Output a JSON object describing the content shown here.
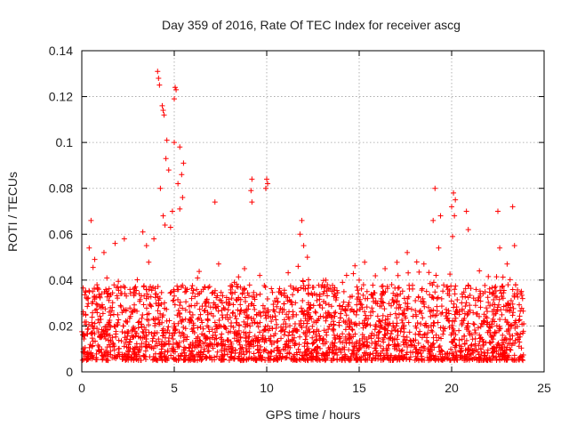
{
  "chart_data": {
    "type": "scatter",
    "title": "Day 359 of 2016, Rate Of TEC Index for receiver ascg",
    "xlabel": "GPS time / hours",
    "ylabel": "ROTI / TECUs",
    "xlim": [
      0,
      25
    ],
    "ylim": [
      0,
      0.14
    ],
    "xticks": [
      0,
      5,
      10,
      15,
      20,
      25
    ],
    "xtick_labels": [
      "0",
      "5",
      "10",
      "15",
      "20",
      "25"
    ],
    "yticks": [
      0,
      0.02,
      0.04,
      0.06,
      0.08,
      0.1,
      0.12,
      0.14
    ],
    "ytick_labels": [
      "0",
      "0.02",
      "0.04",
      "0.06",
      "0.08",
      "0.1",
      "0.12",
      "0.14"
    ],
    "grid": true,
    "marker": "+",
    "color": "#ff0000",
    "series": [
      {
        "name": "ROTI",
        "x_range_hours": [
          0,
          23.9
        ],
        "bulk_range_tecu": [
          0.005,
          0.035
        ],
        "outliers": [
          {
            "x": 4.1,
            "y": 0.131
          },
          {
            "x": 4.15,
            "y": 0.128
          },
          {
            "x": 4.2,
            "y": 0.125
          },
          {
            "x": 4.35,
            "y": 0.116
          },
          {
            "x": 4.45,
            "y": 0.112
          },
          {
            "x": 4.4,
            "y": 0.114
          },
          {
            "x": 5.05,
            "y": 0.124
          },
          {
            "x": 5.1,
            "y": 0.123
          },
          {
            "x": 5.0,
            "y": 0.119
          },
          {
            "x": 4.6,
            "y": 0.101
          },
          {
            "x": 4.55,
            "y": 0.093
          },
          {
            "x": 5.0,
            "y": 0.1
          },
          {
            "x": 5.3,
            "y": 0.098
          },
          {
            "x": 5.5,
            "y": 0.091
          },
          {
            "x": 5.4,
            "y": 0.086
          },
          {
            "x": 4.7,
            "y": 0.088
          },
          {
            "x": 4.25,
            "y": 0.08
          },
          {
            "x": 5.2,
            "y": 0.082
          },
          {
            "x": 5.45,
            "y": 0.076
          },
          {
            "x": 5.3,
            "y": 0.071
          },
          {
            "x": 4.9,
            "y": 0.07
          },
          {
            "x": 4.4,
            "y": 0.068
          },
          {
            "x": 4.5,
            "y": 0.064
          },
          {
            "x": 4.8,
            "y": 0.063
          },
          {
            "x": 0.5,
            "y": 0.066
          },
          {
            "x": 0.4,
            "y": 0.054
          },
          {
            "x": 0.7,
            "y": 0.049
          },
          {
            "x": 1.2,
            "y": 0.052
          },
          {
            "x": 1.8,
            "y": 0.056
          },
          {
            "x": 2.3,
            "y": 0.058
          },
          {
            "x": 3.3,
            "y": 0.061
          },
          {
            "x": 3.9,
            "y": 0.058
          },
          {
            "x": 3.5,
            "y": 0.055
          },
          {
            "x": 7.2,
            "y": 0.074
          },
          {
            "x": 7.4,
            "y": 0.047
          },
          {
            "x": 8.8,
            "y": 0.045
          },
          {
            "x": 9.2,
            "y": 0.084
          },
          {
            "x": 9.15,
            "y": 0.079
          },
          {
            "x": 9.2,
            "y": 0.074
          },
          {
            "x": 10.0,
            "y": 0.084
          },
          {
            "x": 10.05,
            "y": 0.082
          },
          {
            "x": 9.95,
            "y": 0.08
          },
          {
            "x": 11.9,
            "y": 0.066
          },
          {
            "x": 11.8,
            "y": 0.06
          },
          {
            "x": 12.0,
            "y": 0.055
          },
          {
            "x": 12.2,
            "y": 0.05
          },
          {
            "x": 11.7,
            "y": 0.046
          },
          {
            "x": 13.2,
            "y": 0.04
          },
          {
            "x": 14.1,
            "y": 0.039
          },
          {
            "x": 15.0,
            "y": 0.04
          },
          {
            "x": 16.4,
            "y": 0.045
          },
          {
            "x": 17.6,
            "y": 0.052
          },
          {
            "x": 18.5,
            "y": 0.047
          },
          {
            "x": 19.0,
            "y": 0.066
          },
          {
            "x": 19.1,
            "y": 0.08
          },
          {
            "x": 19.4,
            "y": 0.068
          },
          {
            "x": 19.3,
            "y": 0.054
          },
          {
            "x": 20.1,
            "y": 0.078
          },
          {
            "x": 20.2,
            "y": 0.075
          },
          {
            "x": 20.0,
            "y": 0.072
          },
          {
            "x": 20.15,
            "y": 0.068
          },
          {
            "x": 20.05,
            "y": 0.059
          },
          {
            "x": 20.8,
            "y": 0.07
          },
          {
            "x": 20.9,
            "y": 0.062
          },
          {
            "x": 22.5,
            "y": 0.07
          },
          {
            "x": 23.3,
            "y": 0.072
          },
          {
            "x": 22.6,
            "y": 0.054
          },
          {
            "x": 23.4,
            "y": 0.055
          },
          {
            "x": 23.0,
            "y": 0.047
          },
          {
            "x": 21.5,
            "y": 0.044
          },
          {
            "x": 17.1,
            "y": 0.042
          }
        ]
      }
    ]
  }
}
